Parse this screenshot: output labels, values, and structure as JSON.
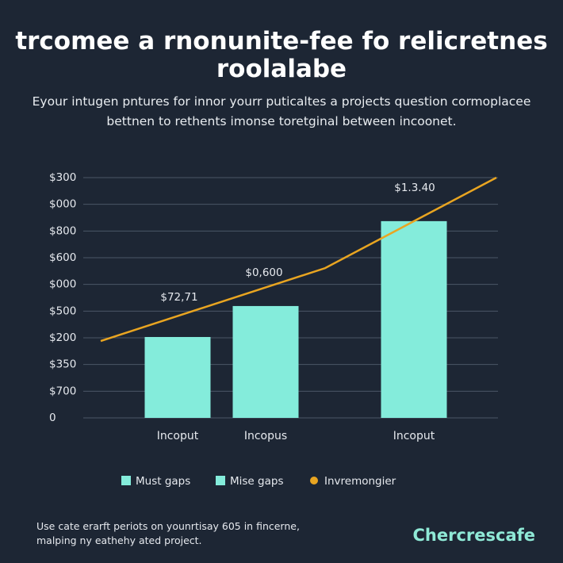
{
  "chart_data": {
    "type": "bar",
    "title": [
      "trcomee a rnonunite-fee fo relicretnes",
      "roolalabe"
    ],
    "subtitle": [
      "Eyour intugen pntures for innor yourr puticaltes a projects question cormoplacee",
      "bettnen to rethents imonse toretginal between incoonet."
    ],
    "categories": [
      "Incoput",
      "Incopus",
      "Incoput"
    ],
    "ylim": [
      0,
      9
    ],
    "yticks": [
      0,
      {
        "value": 1,
        "label": "$700"
      },
      {
        "value": 2,
        "label": "$350"
      },
      {
        "value": 3,
        "label": "$200"
      },
      {
        "value": 4,
        "label": "$500"
      },
      {
        "value": 5,
        "label": "$000"
      },
      {
        "value": 6,
        "label": "$600"
      },
      {
        "value": 7,
        "label": "$800"
      },
      {
        "value": 8,
        "label": "$000"
      },
      {
        "value": 9,
        "label": "$300"
      }
    ],
    "grid": true,
    "series": [
      {
        "type": "bar",
        "color": "#84ecdb",
        "values": [
          3.03,
          4.19,
          7.37
        ]
      },
      {
        "type": "line",
        "color": "#e9a521",
        "values": [
          2.88,
          5.61,
          9.0
        ]
      }
    ],
    "annotations": [
      "$72,71",
      "$0,600",
      "$1.3.40"
    ],
    "legend": [
      {
        "label": "Must gaps",
        "color": "#84ecdb"
      },
      {
        "label": "Mise gaps",
        "color": "#84ecdb"
      },
      {
        "label": "Invremongier",
        "color": "#e9a521"
      }
    ],
    "footer": [
      "Use cate erarft periots on younrtisay 605 in fincerne,",
      "malping ny eathehy ated project."
    ],
    "brand": "Chercrescafe"
  }
}
